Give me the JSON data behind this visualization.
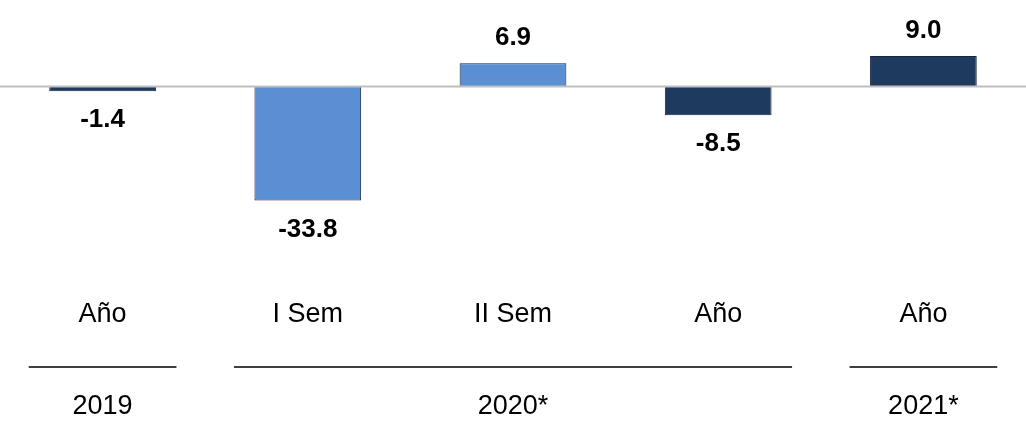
{
  "chart_data": {
    "type": "bar",
    "categories": [
      "Año",
      "I Sem",
      "II Sem",
      "Año",
      "Año"
    ],
    "values": [
      -1.4,
      -33.8,
      6.9,
      -8.5,
      9.0
    ],
    "colors": [
      "#1f3a5f",
      "#5b8fd3",
      "#5b8fd3",
      "#1f3a5f",
      "#1f3a5f"
    ],
    "value_labels": [
      "-1.4",
      "-33.8",
      "6.9",
      "-8.5",
      "9.0"
    ],
    "annotations": [
      "2019",
      "2020*",
      "2021*"
    ],
    "grid": false,
    "legend": false
  }
}
